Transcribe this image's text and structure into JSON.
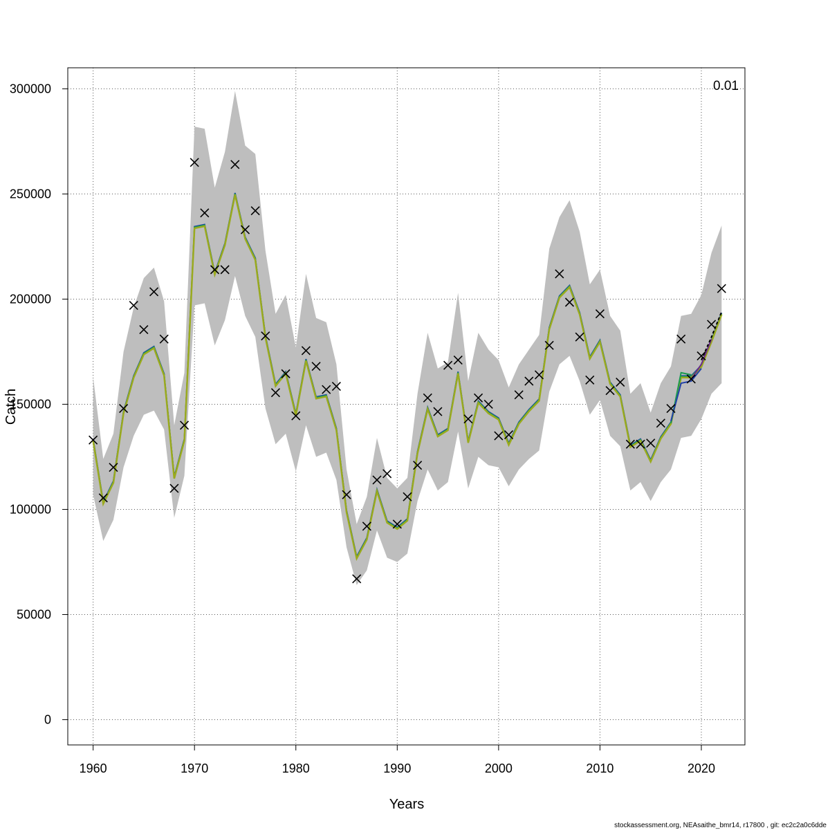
{
  "chart_data": {
    "type": "line",
    "title": "",
    "xlabel": "Years",
    "ylabel": "Catch",
    "corner_label": "0.01",
    "footer": "stockassessment.org, NEAsaithe_bmr14, r17800 , git: ec2c2a0c6dde",
    "xlim": [
      1957.5,
      2024.3
    ],
    "ylim": [
      -12000,
      310000
    ],
    "x_ticks": [
      1960,
      1970,
      1980,
      1990,
      2000,
      2010,
      2020
    ],
    "x_tick_labels": [
      "1960",
      "1970",
      "1980",
      "1990",
      "2000",
      "2010",
      "2020"
    ],
    "y_ticks": [
      0,
      50000,
      100000,
      150000,
      200000,
      250000,
      300000
    ],
    "y_tick_labels": [
      "0",
      "50000",
      "100000",
      "150000",
      "200000",
      "250000",
      "300000"
    ],
    "grid": true,
    "colors": {
      "band": "#bebebe",
      "estimate_main": "#9aaa1e",
      "peel_green": "#1a9a50",
      "peel_blue": "#2040a8",
      "peel_purple": "#6a2a8a",
      "projection": "#000000",
      "observed": "#000000"
    },
    "years": [
      1960,
      1961,
      1962,
      1963,
      1964,
      1965,
      1966,
      1967,
      1968,
      1969,
      1970,
      1971,
      1972,
      1973,
      1974,
      1975,
      1976,
      1977,
      1978,
      1979,
      1980,
      1981,
      1982,
      1983,
      1984,
      1985,
      1986,
      1987,
      1988,
      1989,
      1990,
      1991,
      1992,
      1993,
      1994,
      1995,
      1996,
      1997,
      1998,
      1999,
      2000,
      2001,
      2002,
      2003,
      2004,
      2005,
      2006,
      2007,
      2008,
      2009,
      2010,
      2011,
      2012,
      2013,
      2014,
      2015,
      2016,
      2017,
      2018,
      2019,
      2020,
      2021,
      2022
    ],
    "estimate": [
      133000,
      103000,
      113000,
      146000,
      163000,
      174000,
      177000,
      164000,
      115000,
      133000,
      234000,
      235000,
      212000,
      226000,
      250000,
      229000,
      219000,
      182000,
      159000,
      165000,
      145000,
      171000,
      153000,
      154000,
      138000,
      99000,
      77000,
      86000,
      109000,
      94000,
      91000,
      95000,
      127000,
      148000,
      135000,
      138000,
      165000,
      132000,
      151000,
      146000,
      143000,
      131000,
      141000,
      147000,
      152000,
      186000,
      201000,
      206000,
      193000,
      172000,
      180000,
      160000,
      154000,
      130000,
      133000,
      123000,
      134000,
      141000,
      163000,
      163000,
      168000,
      180000,
      193000
    ],
    "lower": [
      107000,
      85000,
      95000,
      120000,
      135000,
      145000,
      147000,
      138000,
      96000,
      116000,
      197000,
      198000,
      178000,
      190000,
      211000,
      192000,
      182000,
      148000,
      131000,
      136000,
      118000,
      140000,
      125000,
      127000,
      114000,
      82000,
      64000,
      71000,
      90000,
      77000,
      75000,
      79000,
      104000,
      119000,
      109000,
      113000,
      137000,
      110000,
      125000,
      121000,
      120000,
      111000,
      119000,
      124000,
      128000,
      156000,
      169000,
      173000,
      161000,
      145000,
      152000,
      135000,
      130000,
      109000,
      113000,
      104000,
      113000,
      119000,
      134000,
      135000,
      143000,
      155000,
      160000
    ],
    "upper": [
      163000,
      124000,
      136000,
      175000,
      196000,
      210000,
      215000,
      199000,
      140000,
      165000,
      282000,
      281000,
      253000,
      270000,
      299000,
      273000,
      269000,
      223000,
      193000,
      202000,
      177000,
      212000,
      191000,
      189000,
      169000,
      119000,
      93000,
      106000,
      134000,
      115000,
      110000,
      115000,
      155000,
      184000,
      167000,
      170000,
      203000,
      161000,
      184000,
      176000,
      171000,
      158000,
      169000,
      176000,
      183000,
      224000,
      239000,
      247000,
      232000,
      207000,
      214000,
      192000,
      185000,
      155000,
      160000,
      146000,
      160000,
      168000,
      192000,
      193000,
      202000,
      222000,
      235000
    ],
    "observed_catch": [
      133000,
      105500,
      120000,
      148000,
      197000,
      185500,
      203500,
      181000,
      110000,
      140000,
      265000,
      241000,
      214000,
      214000,
      264000,
      233000,
      242000,
      182500,
      155500,
      164500,
      144500,
      175500,
      168000,
      157000,
      158500,
      107000,
      67000,
      92000,
      114000,
      117000,
      93000,
      106000,
      121000,
      153000,
      146500,
      168500,
      171000,
      143000,
      153000,
      150000,
      135000,
      135500,
      154500,
      161000,
      164000,
      178000,
      212000,
      198500,
      182000,
      161500,
      193000,
      156500,
      160500,
      131000,
      131000,
      131500,
      141000,
      148000,
      181000,
      162000,
      173000,
      188000,
      205000
    ],
    "peels": [
      {
        "color": "#1a9a50",
        "x": [
          2017,
          2018,
          2019
        ],
        "y": [
          141000,
          165000,
          164000
        ]
      },
      {
        "color": "#2040a8",
        "x": [
          2017,
          2018,
          2019,
          2020
        ],
        "y": [
          142000,
          160000,
          161000,
          167000
        ]
      },
      {
        "color": "#6a2a8a",
        "x": [
          2019,
          2020,
          2021
        ],
        "y": [
          162000,
          169000,
          181000
        ]
      },
      {
        "color": "#000000",
        "dashed": true,
        "x": [
          2020,
          2021,
          2022
        ],
        "y": [
          171000,
          182000,
          194000
        ]
      }
    ]
  }
}
